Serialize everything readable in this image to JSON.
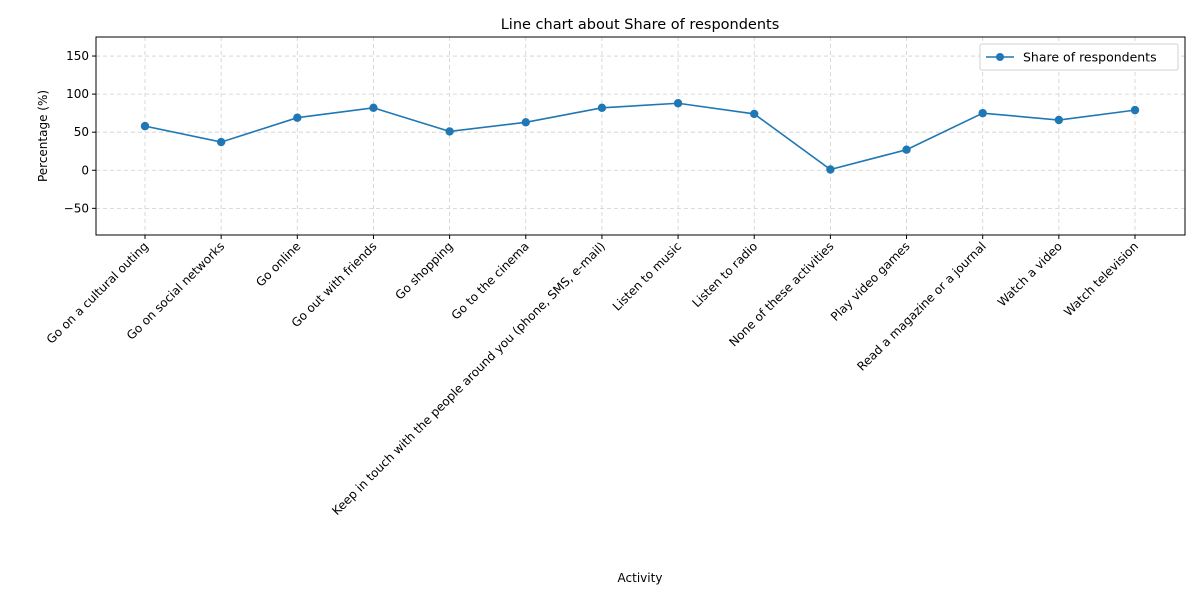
{
  "chart_data": {
    "type": "line",
    "title": "Line chart about Share of respondents",
    "xlabel": "Activity",
    "ylabel": "Percentage (%)",
    "categories": [
      "Go on a cultural outing",
      "Go on social networks",
      "Go online",
      "Go out with friends",
      "Go shopping",
      "Go to the cinema",
      "Keep in touch with the people around you (phone, SMS, e-mail)",
      "Listen to music",
      "Listen to radio",
      "None of these activities",
      "Play video games",
      "Read a magazine or a journal",
      "Watch a video",
      "Watch television"
    ],
    "series": [
      {
        "name": "Share of respondents",
        "values": [
          58,
          37,
          69,
          82,
          51,
          63,
          82,
          88,
          74,
          1,
          27,
          75,
          66,
          79
        ],
        "color": "#1f77b4",
        "marker": "circle"
      }
    ],
    "ylim": [
      -85,
      175
    ],
    "yticks": [
      -50,
      0,
      50,
      100,
      150
    ],
    "grid": true,
    "legend": "top-right"
  }
}
